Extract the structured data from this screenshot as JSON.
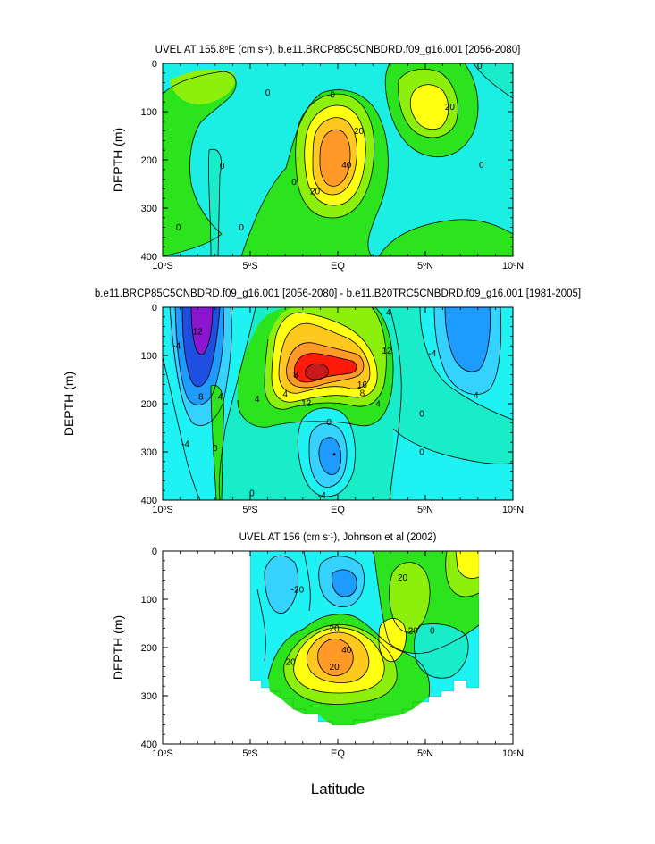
{
  "colors": {
    "purple": "#8b16cf",
    "blue": "#1f4fe0",
    "dodger": "#1e9bff",
    "sky": "#35d2ff",
    "cyan": "#1ef2f2",
    "aqua": "#18ecc8",
    "green": "#2be41d",
    "lime": "#8cf00c",
    "yellow": "#ffff10",
    "gold": "#ffc81e",
    "orange": "#ff9a28",
    "red": "#ff1a0a",
    "darkred": "#c8191b",
    "line": "#000000"
  },
  "xlabel": "Latitude",
  "chart_data": [
    {
      "type": "contour",
      "title_parts": [
        "UVEL AT 155.8",
        "o",
        "E (cm s",
        "-1",
        "), b.e11.BRCP85C5CNBDRD.f09_g16.001 [2056-2080]"
      ],
      "ylabel": "DEPTH (m)",
      "xlim": [
        -10,
        10
      ],
      "ylim": [
        400,
        0
      ],
      "y_ticks": [
        0,
        100,
        200,
        300,
        400
      ],
      "x_ticks": [
        {
          "value": -10,
          "num": "10",
          "sym": "o",
          "hem": "S"
        },
        {
          "value": -5,
          "num": "5",
          "sym": "o",
          "hem": "S"
        },
        {
          "value": 0,
          "num": "EQ",
          "sym": "",
          "hem": ""
        },
        {
          "value": 5,
          "num": "5",
          "sym": "o",
          "hem": "N"
        },
        {
          "value": 10,
          "num": "10",
          "sym": "o",
          "hem": "N"
        }
      ],
      "fields": [
        {
          "name": "max-undercurrent",
          "value": 45,
          "lat": -0.2,
          "depth": 180
        },
        {
          "name": "north-surface-jet",
          "value": 25,
          "lat": 4.8,
          "depth": 90
        }
      ],
      "contour_labels": [
        {
          "text": "0",
          "lat": -4.0,
          "depth": 60
        },
        {
          "text": "0",
          "lat": -0.3,
          "depth": 65
        },
        {
          "text": "0",
          "lat": 8.1,
          "depth": 5
        },
        {
          "text": "0",
          "lat": -6.6,
          "depth": 212
        },
        {
          "text": "0",
          "lat": -9.1,
          "depth": 340
        },
        {
          "text": "0",
          "lat": -5.5,
          "depth": 340
        },
        {
          "text": "0",
          "lat": -2.5,
          "depth": 245
        },
        {
          "text": "0",
          "lat": 8.2,
          "depth": 210
        },
        {
          "text": "20",
          "lat": 1.2,
          "depth": 140
        },
        {
          "text": "40",
          "lat": 0.5,
          "depth": 210
        },
        {
          "text": "20",
          "lat": -1.3,
          "depth": 265
        },
        {
          "text": "20",
          "lat": 6.4,
          "depth": 90
        }
      ]
    },
    {
      "type": "contour",
      "title_parts": [
        "b.e11.BRCP85C5CNBDRD.f09_g16.001 [2056-2080] - b.e11.B20TRC5CNBDRD.f09_g16.001 [1981-2005]"
      ],
      "ylabel": "DEPTH (m)",
      "xlim": [
        -10,
        10
      ],
      "ylim": [
        400,
        0
      ],
      "y_ticks": [
        0,
        100,
        200,
        300,
        400
      ],
      "x_ticks": [
        {
          "value": -10,
          "num": "10",
          "sym": "o",
          "hem": "S"
        },
        {
          "value": -5,
          "num": "5",
          "sym": "o",
          "hem": "S"
        },
        {
          "value": 0,
          "num": "EQ",
          "sym": "",
          "hem": ""
        },
        {
          "value": 5,
          "num": "5",
          "sym": "o",
          "hem": "N"
        },
        {
          "value": 10,
          "num": "10",
          "sym": "o",
          "hem": "N"
        }
      ],
      "fields": [
        {
          "name": "min-southern-jet",
          "value": -14,
          "lat": -7.7,
          "depth": 60
        },
        {
          "name": "max-core",
          "value": 18,
          "lat": -0.8,
          "depth": 150
        },
        {
          "name": "min-deep",
          "value": -8,
          "lat": -0.2,
          "depth": 305
        },
        {
          "name": "min-north",
          "value": -6,
          "lat": 7.6,
          "depth": 90
        }
      ],
      "contour_labels": [
        {
          "text": "12",
          "lat": -8.0,
          "depth": 50
        },
        {
          "text": "-4",
          "lat": -9.2,
          "depth": 80
        },
        {
          "text": "-8",
          "lat": -7.9,
          "depth": 185
        },
        {
          "text": "-4",
          "lat": -6.8,
          "depth": 185
        },
        {
          "text": "-4",
          "lat": -8.7,
          "depth": 283
        },
        {
          "text": "0",
          "lat": -7.0,
          "depth": 292
        },
        {
          "text": "0",
          "lat": -4.9,
          "depth": 385
        },
        {
          "text": "4",
          "lat": -4.6,
          "depth": 190
        },
        {
          "text": "4",
          "lat": -3.0,
          "depth": 180
        },
        {
          "text": "8",
          "lat": -2.4,
          "depth": 140
        },
        {
          "text": "12",
          "lat": -1.8,
          "depth": 198
        },
        {
          "text": "12",
          "lat": 2.8,
          "depth": 90
        },
        {
          "text": "16",
          "lat": 1.4,
          "depth": 160
        },
        {
          "text": "8",
          "lat": 1.4,
          "depth": 178
        },
        {
          "text": "4",
          "lat": 2.3,
          "depth": 200
        },
        {
          "text": "4",
          "lat": 2.9,
          "depth": 10
        },
        {
          "text": "0",
          "lat": -0.5,
          "depth": 238
        },
        {
          "text": "-4",
          "lat": -0.9,
          "depth": 390
        },
        {
          "text": "0",
          "lat": 4.8,
          "depth": 220
        },
        {
          "text": "-4",
          "lat": 5.4,
          "depth": 95
        },
        {
          "text": "4",
          "lat": 7.9,
          "depth": 182
        },
        {
          "text": "0",
          "lat": 4.8,
          "depth": 300
        }
      ]
    },
    {
      "type": "contour",
      "title_parts": [
        "UVEL AT 156 (cm s",
        "-1",
        "), Johnson et al (2002)"
      ],
      "ylabel": "DEPTH (m)",
      "xlim": [
        -10,
        10
      ],
      "ylim": [
        400,
        0
      ],
      "y_ticks": [
        0,
        100,
        200,
        300,
        400
      ],
      "x_ticks": [
        {
          "value": -10,
          "num": "10",
          "sym": "o",
          "hem": "S"
        },
        {
          "value": -5,
          "num": "5",
          "sym": "o",
          "hem": "S"
        },
        {
          "value": 0,
          "num": "EQ",
          "sym": "",
          "hem": ""
        },
        {
          "value": 5,
          "num": "5",
          "sym": "o",
          "hem": "N"
        },
        {
          "value": 10,
          "num": "10",
          "sym": "o",
          "hem": "N"
        }
      ],
      "data_lat_range": [
        -5,
        8
      ],
      "fields": [
        {
          "name": "max-undercurrent",
          "value": 50,
          "lat": -0.5,
          "depth": 200
        },
        {
          "name": "min-surface",
          "value": -30,
          "lat": 0.4,
          "depth": 45
        }
      ],
      "contour_labels": [
        {
          "text": "-20",
          "lat": -2.3,
          "depth": 80
        },
        {
          "text": "20",
          "lat": 3.7,
          "depth": 55
        },
        {
          "text": "0",
          "lat": 5.4,
          "depth": 165
        },
        {
          "text": "20",
          "lat": -0.2,
          "depth": 160
        },
        {
          "text": "40",
          "lat": 0.5,
          "depth": 205
        },
        {
          "text": "20",
          "lat": -2.7,
          "depth": 230
        },
        {
          "text": "20",
          "lat": -0.2,
          "depth": 240
        },
        {
          "text": "20",
          "lat": 4.3,
          "depth": 165
        }
      ]
    }
  ]
}
